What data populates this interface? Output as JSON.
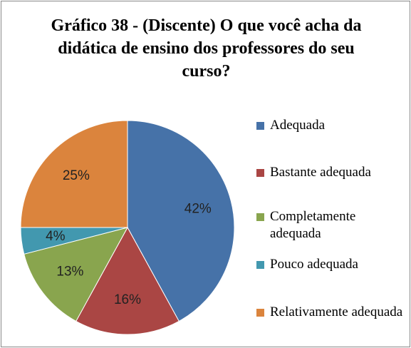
{
  "chart_data": {
    "type": "pie",
    "title": "Gráfico 38 - (Discente) O que você acha da didática de ensino dos professores do seu curso?",
    "categories": [
      "Adequada",
      "Bastante adequada",
      "Completamente adequada",
      "Pouco adequada",
      "Relativamente adequada"
    ],
    "values": [
      42,
      16,
      13,
      4,
      25
    ],
    "value_labels": [
      "42%",
      "16%",
      "13%",
      "4%",
      "25%"
    ],
    "colors": [
      "#4672a8",
      "#aa4644",
      "#89a54e",
      "#4298af",
      "#db843d"
    ],
    "legend": "right"
  }
}
